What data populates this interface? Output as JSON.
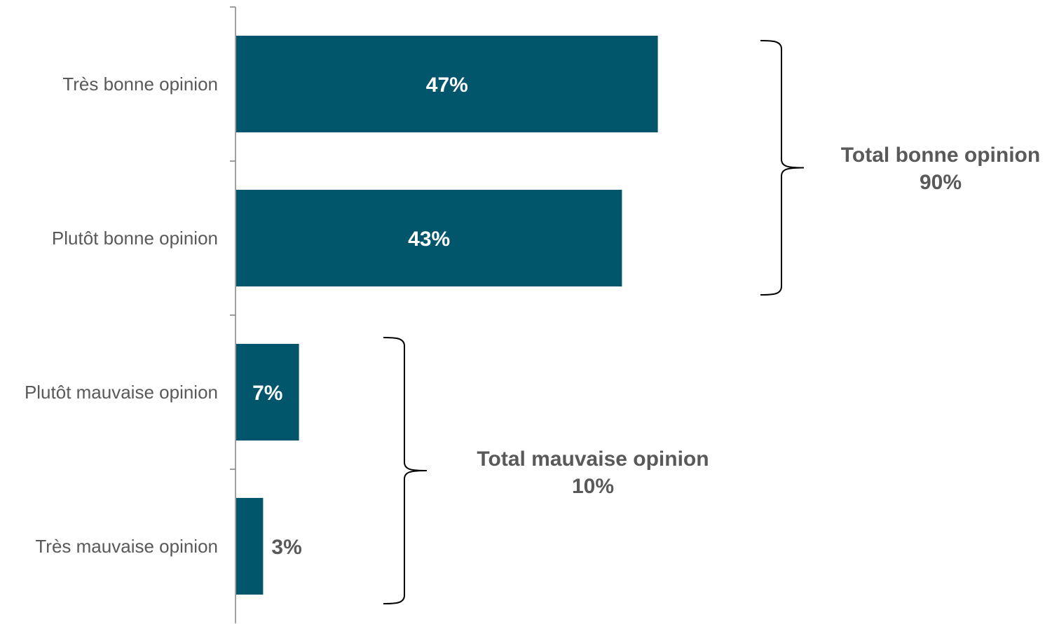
{
  "chart_data": {
    "type": "bar",
    "orientation": "horizontal",
    "title": "",
    "xlabel": "",
    "ylabel": "",
    "categories": [
      "Très bonne opinion",
      "Plutôt bonne opinion",
      "Plutôt mauvaise opinion",
      "Très mauvaise opinion"
    ],
    "values": [
      47,
      43,
      7,
      3
    ],
    "value_labels": [
      "47%",
      "43%",
      "7%",
      "3%"
    ],
    "xlim": [
      0,
      90
    ],
    "grid": false,
    "legend": "none",
    "bar_color": "#02566B",
    "axis_color": "#808080",
    "annotations": [
      {
        "label": "Total bonne opinion",
        "value": "90%",
        "categories": [
          "Très bonne opinion",
          "Plutôt bonne opinion"
        ]
      },
      {
        "label": "Total mauvaise opinion",
        "value": "10%",
        "categories": [
          "Plutôt mauvaise opinion",
          "Très mauvaise opinion"
        ]
      }
    ]
  }
}
